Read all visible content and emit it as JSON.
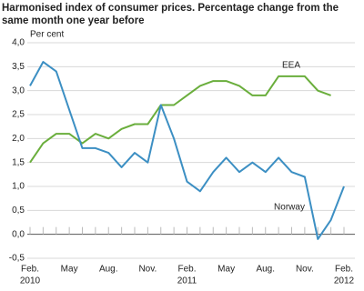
{
  "chart_data": {
    "type": "line",
    "title": "Harmonised index of consumer prices. Percentage change from the same month one year before",
    "y_label": "Per cent",
    "categories": [
      "Feb.",
      null,
      null,
      "May",
      null,
      null,
      "Aug.",
      null,
      null,
      "Nov.",
      null,
      null,
      "Feb.",
      null,
      null,
      "May",
      null,
      null,
      "Aug.",
      null,
      null,
      "Nov.",
      null,
      null,
      "Feb."
    ],
    "years": [
      "2010",
      "2011",
      "2012"
    ],
    "series": [
      {
        "name": "EEA",
        "color": "#6aae3c",
        "values": [
          1.5,
          1.9,
          2.1,
          2.1,
          1.9,
          2.1,
          2.0,
          2.2,
          2.3,
          2.3,
          2.7,
          2.7,
          2.9,
          3.1,
          3.2,
          3.2,
          3.1,
          2.9,
          2.9,
          3.3,
          3.3,
          3.3,
          3.0,
          2.9,
          null
        ]
      },
      {
        "name": "Norway",
        "color": "#3c8fc3",
        "values": [
          3.1,
          3.6,
          3.4,
          2.6,
          1.8,
          1.8,
          1.7,
          1.4,
          1.7,
          1.5,
          2.7,
          2.0,
          1.1,
          0.9,
          1.3,
          1.6,
          1.3,
          1.5,
          1.3,
          1.6,
          1.3,
          1.2,
          -0.1,
          0.3,
          1.0
        ]
      }
    ],
    "ylim": [
      -0.5,
      4.0
    ],
    "yticks": [
      {
        "value": -0.5,
        "label": "-0,5"
      },
      {
        "value": 0,
        "label": "0,0"
      },
      {
        "value": 0.5,
        "label": "0,5"
      },
      {
        "value": 1.0,
        "label": "1,0"
      },
      {
        "value": 1.5,
        "label": "1,5"
      },
      {
        "value": 2.0,
        "label": "2,0"
      },
      {
        "value": 2.5,
        "label": "2,5"
      },
      {
        "value": 3.0,
        "label": "3,0"
      },
      {
        "value": 3.5,
        "label": "3,5"
      },
      {
        "value": 4.0,
        "label": "4,0"
      }
    ],
    "grid": true
  }
}
